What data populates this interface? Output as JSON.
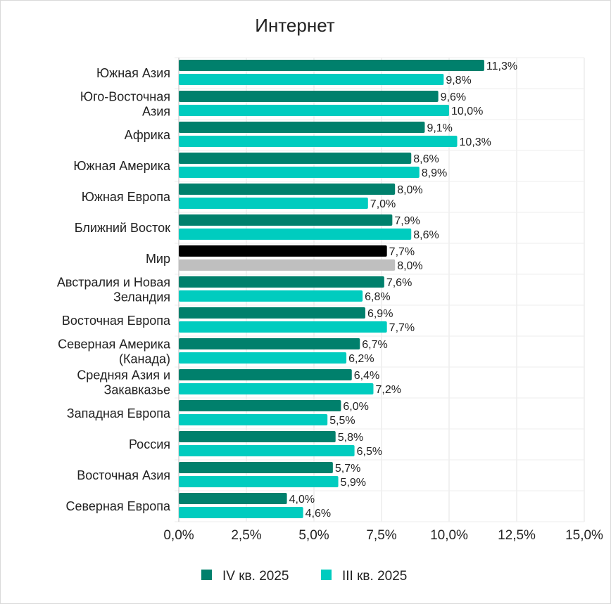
{
  "chart_data": {
    "type": "bar",
    "orientation": "horizontal",
    "title": "Интернет",
    "xlabel": "",
    "ylabel": "",
    "xlim": [
      0,
      15
    ],
    "x_ticks": [
      "0,0%",
      "2,5%",
      "5,0%",
      "7,5%",
      "10,0%",
      "12,5%",
      "15,0%"
    ],
    "x_tick_values": [
      0,
      2.5,
      5,
      7.5,
      10,
      12.5,
      15
    ],
    "grid": true,
    "legend_position": "bottom",
    "categories": [
      "Южная Азия",
      "Юго-Восточная\nАзия",
      "Африка",
      "Южная Америка",
      "Южная Европа",
      "Ближний Восток",
      "Мир",
      "Австралия и Новая\nЗеландия",
      "Восточная Европа",
      "Северная Америка\n(Канада)",
      "Средняя Азия и\nЗакавказье",
      "Западная Европа",
      "Россия",
      "Восточная Азия",
      "Северная Европа"
    ],
    "highlight_category": "Мир",
    "series": [
      {
        "name": "IV кв. 2025",
        "color": "#00806C",
        "highlight_color": "#000000",
        "values": [
          11.3,
          9.6,
          9.1,
          8.6,
          8.0,
          7.9,
          7.7,
          7.6,
          6.9,
          6.7,
          6.4,
          6.0,
          5.8,
          5.7,
          4.0
        ],
        "labels": [
          "11,3%",
          "9,6%",
          "9,1%",
          "8,6%",
          "8,0%",
          "7,9%",
          "7,7%",
          "7,6%",
          "6,9%",
          "6,7%",
          "6,4%",
          "6,0%",
          "5,8%",
          "5,7%",
          "4,0%"
        ]
      },
      {
        "name": "III кв. 2025",
        "color": "#00CCBF",
        "highlight_color": "#BFBFBF",
        "values": [
          9.8,
          10.0,
          10.3,
          8.9,
          7.0,
          8.6,
          8.0,
          6.8,
          7.7,
          6.2,
          7.2,
          5.5,
          6.5,
          5.9,
          4.6
        ],
        "labels": [
          "9,8%",
          "10,0%",
          "10,3%",
          "8,9%",
          "7,0%",
          "8,6%",
          "8,0%",
          "6,8%",
          "7,7%",
          "6,2%",
          "7,2%",
          "5,5%",
          "6,5%",
          "5,9%",
          "4,6%"
        ]
      }
    ]
  }
}
